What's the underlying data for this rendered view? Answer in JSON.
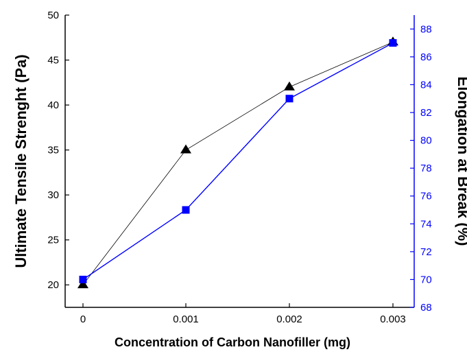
{
  "chart_data": {
    "type": "line",
    "x": [
      0,
      0.001,
      0.002,
      0.003
    ],
    "x_tick_labels": [
      "0",
      "0.001",
      "0.002",
      "0.003"
    ],
    "xlabel": "Concentration of Carbon Nanofiller (mg)",
    "ylabel_left": "Ultimate Tensile Strenght (Pa)",
    "ylabel_right": "Elongation at Break (%)",
    "ylim_left": [
      17.5,
      50
    ],
    "ylim_right": [
      68,
      89
    ],
    "left_ticks": [
      "20",
      "25",
      "30",
      "35",
      "40",
      "45",
      "50"
    ],
    "right_ticks": [
      "68",
      "70",
      "72",
      "74",
      "76",
      "78",
      "80",
      "82",
      "84",
      "86",
      "88"
    ],
    "grid": false,
    "legend": "none",
    "series": [
      {
        "axis": "left",
        "marker": "triangle",
        "color": "#000000",
        "values": [
          20,
          35,
          42,
          47
        ]
      },
      {
        "axis": "right",
        "marker": "square",
        "color": "#0000ff",
        "values": [
          70,
          75,
          83,
          87
        ]
      }
    ]
  }
}
